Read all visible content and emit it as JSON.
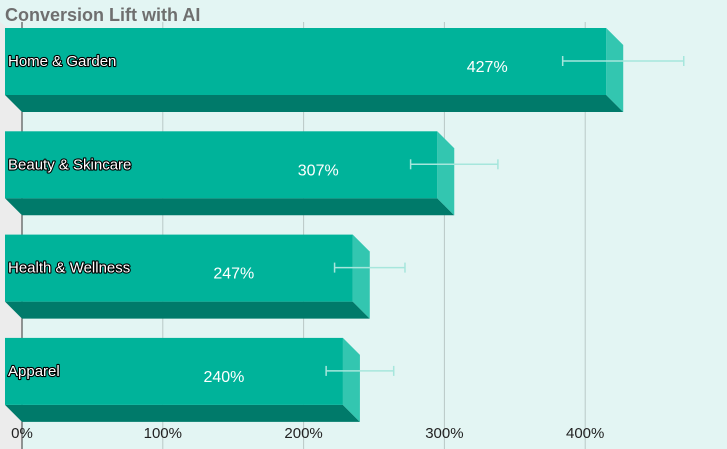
{
  "chart_data": {
    "type": "bar",
    "orientation": "horizontal",
    "title": "Conversion Lift with AI",
    "xlabel": "",
    "ylabel": "",
    "categories": [
      "Home & Garden",
      "Beauty & Skincare",
      "Health & Wellness",
      "Apparel"
    ],
    "values": [
      427,
      307,
      247,
      240
    ],
    "value_labels": [
      "427%",
      "307%",
      "247%",
      "240%"
    ],
    "error_low": [
      384,
      276,
      222,
      216
    ],
    "error_high": [
      470,
      338,
      272,
      264
    ],
    "xlim": [
      0,
      500
    ],
    "xticks": [
      0,
      100,
      200,
      300,
      400
    ],
    "xtick_labels": [
      "0%",
      "100%",
      "200%",
      "300%",
      "400%"
    ],
    "grid": true,
    "legend": "none",
    "colors": {
      "bar_front": "#00b39a",
      "bar_side": "#33c6b0",
      "bar_bottom": "#007a6a",
      "error_bar": "#a6e6dc",
      "grid": "#b9c8c6",
      "background": "#e3f5f3"
    }
  }
}
